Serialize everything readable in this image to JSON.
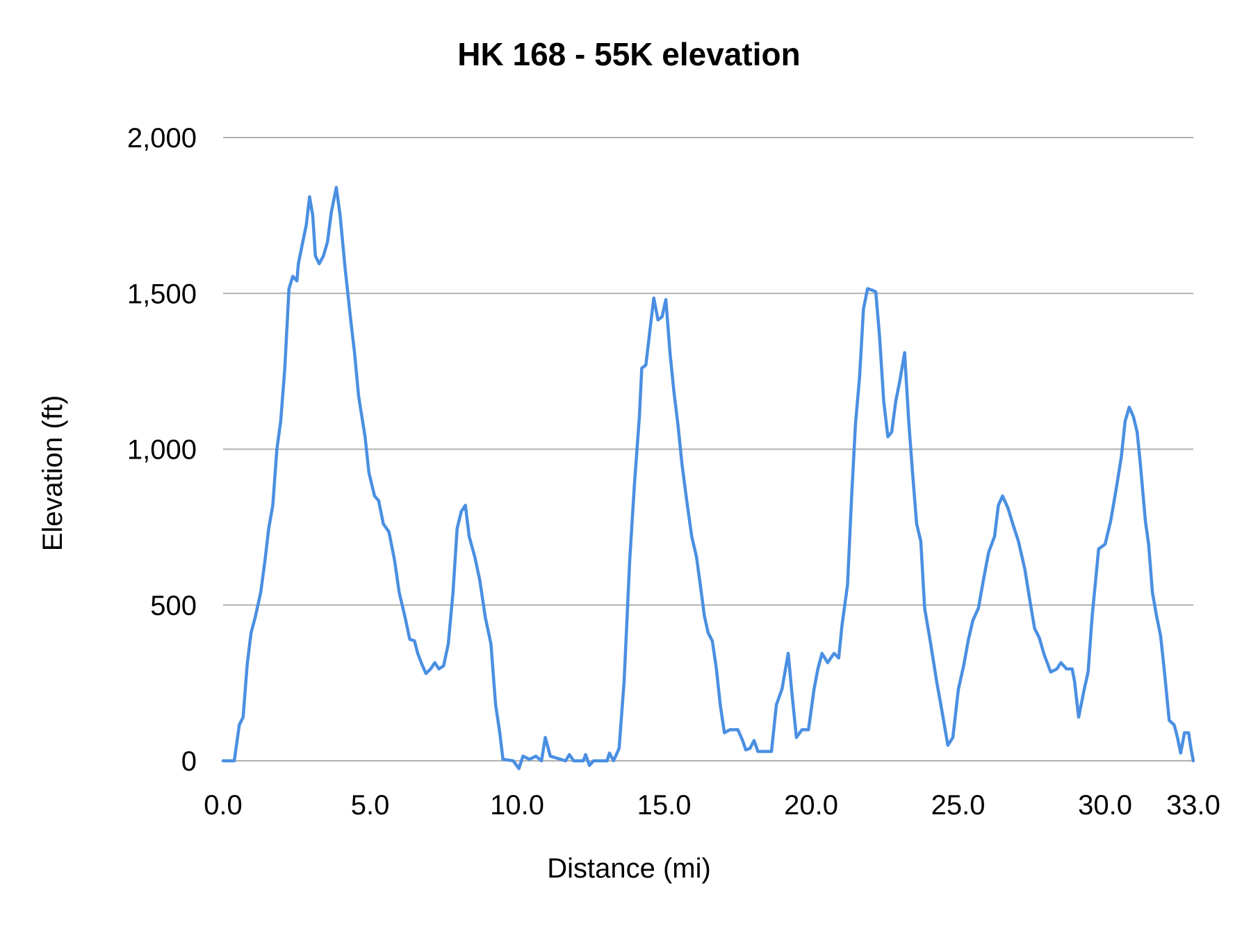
{
  "chart_data": {
    "type": "line",
    "title": "HK 168 - 55K elevation",
    "xlabel": "Distance (mi)",
    "ylabel": "Elevation (ft)",
    "xlim": [
      0,
      33
    ],
    "ylim": [
      0,
      2000
    ],
    "grid": "horizontal",
    "legend": "none",
    "line_color": "#4a8fe2",
    "grid_color": "#b0b0b0",
    "x_ticks": [
      0,
      5,
      10,
      15,
      20,
      25,
      30,
      33
    ],
    "x_tick_labels": [
      "0.0",
      "5.0",
      "10.0",
      "15.0",
      "20.0",
      "25.0",
      "30.0",
      "33.0"
    ],
    "y_ticks": [
      0,
      500,
      1000,
      1500,
      2000
    ],
    "y_tick_labels": [
      "0",
      "500",
      "1,000",
      "1,500",
      "2,000"
    ],
    "series": [
      {
        "x": [
          0,
          0.38,
          0.55,
          0.68,
          0.82,
          0.95,
          1.09,
          1.28,
          1.42,
          1.55,
          1.69,
          1.83,
          1.96,
          2.1,
          2.24,
          2.37,
          2.51,
          2.56,
          2.72,
          2.83,
          2.94,
          3.05,
          3.14,
          3.27,
          3.41,
          3.55,
          3.68,
          3.85,
          3.98,
          4.15,
          4.34,
          4.47,
          4.61,
          4.83,
          4.96,
          5.15,
          5.29,
          5.45,
          5.64,
          5.83,
          5.99,
          6.19,
          6.35,
          6.51,
          6.62,
          6.76,
          6.9,
          7.06,
          7.2,
          7.34,
          7.5,
          7.66,
          7.82,
          7.96,
          8.1,
          8.24,
          8.37,
          8.56,
          8.73,
          8.92,
          9.11,
          9.27,
          9.41,
          9.52,
          9.87,
          10.06,
          10.2,
          10.42,
          10.64,
          10.83,
          10.96,
          11.13,
          11.65,
          11.78,
          11.92,
          12.25,
          12.33,
          12.46,
          12.6,
          13.06,
          13.14,
          13.28,
          13.47,
          13.64,
          13.83,
          13.99,
          14.16,
          14.24,
          14.38,
          14.51,
          14.65,
          14.79,
          14.93,
          15.06,
          15.2,
          15.34,
          15.47,
          15.61,
          15.77,
          15.94,
          16.1,
          16.23,
          16.37,
          16.5,
          16.64,
          16.78,
          16.91,
          17.05,
          17.24,
          17.51,
          17.67,
          17.78,
          17.92,
          18.06,
          18.19,
          18.65,
          18.82,
          19.01,
          19.22,
          19.36,
          19.5,
          19.69,
          19.91,
          20.1,
          20.23,
          20.37,
          20.56,
          20.78,
          20.94,
          21.05,
          21.24,
          21.38,
          21.51,
          21.65,
          21.78,
          21.92,
          22.09,
          22.2,
          22.33,
          22.47,
          22.61,
          22.74,
          22.88,
          23.02,
          23.18,
          23.32,
          23.45,
          23.59,
          23.73,
          23.86,
          24.05,
          24.27,
          24.46,
          24.65,
          24.82,
          25.01,
          25.2,
          25.34,
          25.5,
          25.69,
          25.88,
          26.04,
          26.24,
          26.37,
          26.51,
          26.7,
          26.86,
          27.05,
          27.27,
          27.44,
          27.6,
          27.76,
          27.93,
          28.15,
          28.36,
          28.5,
          28.69,
          28.88,
          28.96,
          29.1,
          29.29,
          29.42,
          29.56,
          29.78,
          30.0,
          30.19,
          30.38,
          30.55,
          30.68,
          30.82,
          30.96,
          31.09,
          31.2,
          31.37,
          31.48,
          31.61,
          31.75,
          31.89,
          32.02,
          32.18,
          32.35,
          32.46,
          32.57,
          32.7,
          32.84,
          32.92,
          33.0
        ],
        "y": [
          0,
          0,
          115,
          140,
          310,
          410,
          460,
          540,
          640,
          745,
          820,
          1000,
          1090,
          1260,
          1515,
          1555,
          1540,
          1595,
          1670,
          1720,
          1810,
          1750,
          1620,
          1595,
          1620,
          1665,
          1760,
          1840,
          1750,
          1580,
          1415,
          1310,
          1170,
          1040,
          925,
          850,
          835,
          760,
          735,
          645,
          540,
          460,
          390,
          385,
          345,
          310,
          280,
          295,
          315,
          295,
          305,
          375,
          540,
          745,
          800,
          820,
          720,
          655,
          580,
          460,
          375,
          180,
          90,
          5,
          0,
          -25,
          15,
          5,
          15,
          0,
          75,
          15,
          0,
          20,
          0,
          0,
          20,
          -15,
          0,
          0,
          25,
          0,
          40,
          255,
          645,
          885,
          1105,
          1260,
          1270,
          1375,
          1485,
          1415,
          1425,
          1480,
          1310,
          1180,
          1080,
          950,
          835,
          720,
          655,
          565,
          465,
          410,
          385,
          295,
          180,
          90,
          100,
          100,
          65,
          35,
          40,
          65,
          30,
          30,
          180,
          230,
          345,
          205,
          75,
          100,
          100,
          230,
          295,
          345,
          315,
          345,
          330,
          435,
          565,
          850,
          1080,
          1235,
          1450,
          1515,
          1510,
          1505,
          1360,
          1155,
          1040,
          1055,
          1155,
          1220,
          1310,
          1090,
          925,
          760,
          705,
          490,
          385,
          255,
          155,
          50,
          75,
          230,
          310,
          385,
          450,
          490,
          590,
          670,
          720,
          820,
          850,
          810,
          760,
          705,
          615,
          515,
          425,
          395,
          340,
          285,
          295,
          315,
          295,
          295,
          255,
          140,
          230,
          285,
          465,
          680,
          695,
          770,
          875,
          975,
          1090,
          1135,
          1105,
          1055,
          950,
          770,
          695,
          540,
          465,
          400,
          285,
          130,
          115,
          75,
          25,
          90,
          90,
          40,
          0
        ]
      }
    ]
  }
}
